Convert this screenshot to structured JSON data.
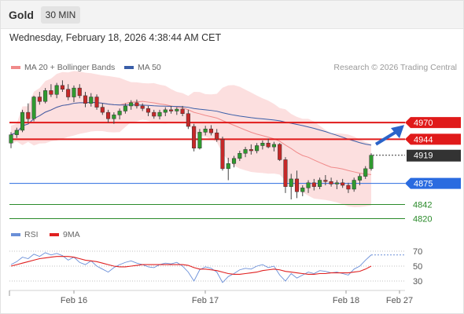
{
  "header": {
    "symbol": "Gold",
    "timeframe": "30 MIN",
    "datetime": "Wednesday, February 18, 2026 4:38:44 AM CET"
  },
  "legend": {
    "items": [
      {
        "label": "MA 20 + Bollinger Bands",
        "color": "#f08a8a"
      },
      {
        "label": "MA 50",
        "color": "#3a5ea8"
      }
    ],
    "credit": "Research © 2026 Trading Central"
  },
  "rsi_legend": {
    "items": [
      {
        "label": "RSI",
        "color": "#6a8fd8"
      },
      {
        "label": "9MA",
        "color": "#e02020"
      }
    ]
  },
  "chart_data": [
    {
      "type": "candlestick",
      "title": "Gold",
      "timeframe": "30 MIN",
      "x_tick_labels": [
        "Feb 16",
        "Feb 17",
        "Feb 18",
        "Feb 27"
      ],
      "y_range": [
        4812,
        5045
      ],
      "levels": [
        {
          "label": "4970",
          "value": 4970,
          "color": "#e01a1a",
          "kind": "resistance"
        },
        {
          "label": "4944",
          "value": 4944,
          "color": "#e01a1a",
          "kind": "resistance"
        },
        {
          "label": "4919",
          "value": 4919,
          "color": "#333333",
          "kind": "last"
        },
        {
          "label": "4875",
          "value": 4875,
          "color": "#2a6be0",
          "kind": "pivot"
        },
        {
          "label": "4842",
          "value": 4842,
          "color": "#2a8a2a",
          "kind": "support"
        },
        {
          "label": "4820",
          "value": 4820,
          "color": "#2a8a2a",
          "kind": "support"
        }
      ],
      "candles": [
        [
          4938,
          4955,
          4930,
          4951
        ],
        [
          4951,
          4962,
          4946,
          4958
        ],
        [
          4958,
          4990,
          4955,
          4986
        ],
        [
          4986,
          5000,
          4970,
          4976
        ],
        [
          4976,
          5012,
          4972,
          5010
        ],
        [
          5010,
          5018,
          4998,
          5003
        ],
        [
          5003,
          5024,
          5000,
          5020
        ],
        [
          5020,
          5030,
          5010,
          5014
        ],
        [
          5014,
          5032,
          5008,
          5028
        ],
        [
          5028,
          5036,
          5018,
          5022
        ],
        [
          5022,
          5030,
          5005,
          5010
        ],
        [
          5010,
          5028,
          5002,
          5024
        ],
        [
          5024,
          5030,
          5008,
          5012
        ],
        [
          5012,
          5018,
          4994,
          5000
        ],
        [
          5000,
          5016,
          4995,
          5010
        ],
        [
          5010,
          5014,
          4990,
          4994
        ],
        [
          4994,
          5000,
          4982,
          4986
        ],
        [
          4986,
          4990,
          4970,
          4976
        ],
        [
          4976,
          4986,
          4968,
          4982
        ],
        [
          4982,
          4992,
          4975,
          4988
        ],
        [
          4988,
          5000,
          4984,
          4996
        ],
        [
          4996,
          5005,
          4990,
          5001
        ],
        [
          5001,
          5006,
          4992,
          4996
        ],
        [
          4996,
          5000,
          4988,
          4992
        ],
        [
          4992,
          4996,
          4980,
          4986
        ],
        [
          4986,
          4990,
          4976,
          4980
        ],
        [
          4980,
          4990,
          4975,
          4986
        ],
        [
          4986,
          4994,
          4980,
          4990
        ],
        [
          4990,
          4996,
          4984,
          4988
        ],
        [
          4988,
          4994,
          4982,
          4991
        ],
        [
          4991,
          4996,
          4980,
          4984
        ],
        [
          4984,
          4990,
          4960,
          4964
        ],
        [
          4964,
          4968,
          4925,
          4930
        ],
        [
          4930,
          4960,
          4928,
          4955
        ],
        [
          4955,
          4965,
          4950,
          4960
        ],
        [
          4960,
          4966,
          4950,
          4954
        ],
        [
          4954,
          4960,
          4940,
          4944
        ],
        [
          4944,
          4948,
          4895,
          4898
        ],
        [
          4898,
          4915,
          4880,
          4906
        ],
        [
          4906,
          4918,
          4900,
          4914
        ],
        [
          4914,
          4926,
          4910,
          4922
        ],
        [
          4922,
          4932,
          4916,
          4928
        ],
        [
          4928,
          4936,
          4920,
          4926
        ],
        [
          4926,
          4938,
          4922,
          4934
        ],
        [
          4934,
          4942,
          4928,
          4938
        ],
        [
          4938,
          4945,
          4930,
          4932
        ],
        [
          4932,
          4940,
          4925,
          4936
        ],
        [
          4936,
          4938,
          4910,
          4912
        ],
        [
          4912,
          4916,
          4860,
          4870
        ],
        [
          4870,
          4890,
          4850,
          4882
        ],
        [
          4882,
          4895,
          4852,
          4862
        ],
        [
          4862,
          4872,
          4855,
          4868
        ],
        [
          4868,
          4880,
          4860,
          4876
        ],
        [
          4876,
          4882,
          4864,
          4870
        ],
        [
          4870,
          4884,
          4866,
          4880
        ],
        [
          4880,
          4888,
          4872,
          4878
        ],
        [
          4878,
          4884,
          4870,
          4874
        ],
        [
          4874,
          4880,
          4866,
          4876
        ],
        [
          4876,
          4882,
          4868,
          4872
        ],
        [
          4872,
          4876,
          4860,
          4866
        ],
        [
          4866,
          4884,
          4862,
          4880
        ],
        [
          4880,
          4890,
          4872,
          4886
        ],
        [
          4886,
          4902,
          4882,
          4898
        ],
        [
          4898,
          4922,
          4895,
          4919
        ]
      ]
    },
    {
      "type": "line",
      "title": "RSI",
      "series": [
        {
          "name": "RSI",
          "color": "#6a8fd8",
          "values": [
            52,
            56,
            62,
            60,
            66,
            63,
            68,
            65,
            67,
            64,
            58,
            62,
            55,
            52,
            57,
            50,
            46,
            42,
            48,
            52,
            55,
            57,
            54,
            52,
            49,
            48,
            52,
            54,
            53,
            55,
            50,
            42,
            30,
            45,
            49,
            47,
            42,
            28,
            36,
            40,
            45,
            47,
            46,
            50,
            52,
            48,
            50,
            38,
            30,
            40,
            34,
            38,
            42,
            40,
            44,
            43,
            41,
            42,
            40,
            38,
            46,
            50,
            58,
            65
          ]
        },
        {
          "name": "9MA",
          "color": "#e02020",
          "values": [
            50,
            52,
            54,
            56,
            58,
            60,
            61,
            62,
            63,
            63,
            63,
            62,
            60,
            58,
            57,
            56,
            54,
            52,
            50,
            49,
            49,
            50,
            51,
            52,
            52,
            52,
            52,
            52,
            52,
            52,
            52,
            51,
            48,
            46,
            46,
            45,
            44,
            42,
            40,
            39,
            39,
            40,
            41,
            42,
            44,
            45,
            46,
            45,
            43,
            42,
            41,
            40,
            39,
            39,
            40,
            40,
            41,
            41,
            41,
            41,
            42,
            43,
            46,
            50
          ]
        }
      ],
      "y_ticks": [
        70,
        50,
        30
      ]
    }
  ]
}
